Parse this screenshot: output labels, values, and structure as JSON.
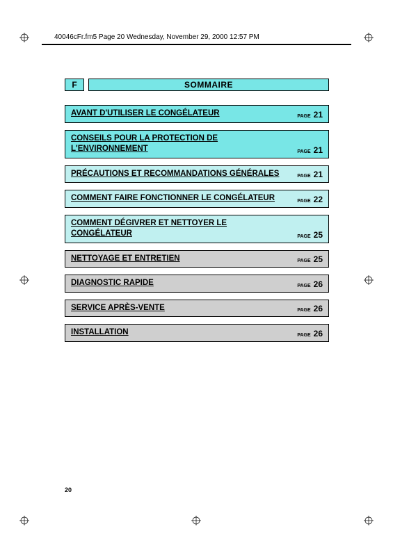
{
  "header_text": "40046cFr.fm5  Page 20  Wednesday, November 29, 2000  12:57 PM",
  "language_code": "F",
  "title": "SOMMAIRE",
  "page_label": "PAGE",
  "footer_page_number": "20",
  "colors": {
    "cyan_bright": "#78e6e6",
    "cyan_pale": "#c0f0f0",
    "grey": "#cfcfcf",
    "border": "#000000"
  },
  "toc": [
    {
      "title": "AVANT D'UTILISER LE CONGÉLATEUR",
      "page": "21",
      "bg": "#78e6e6"
    },
    {
      "title": "CONSEILS POUR LA PROTECTION DE L'ENVIRONNEMENT",
      "page": "21",
      "bg": "#78e6e6"
    },
    {
      "title": "PRÉCAUTIONS ET RECOMMANDATIONS GÉNÉRALES",
      "page": "21",
      "bg": "#c0f0f0"
    },
    {
      "title": "COMMENT FAIRE FONCTIONNER LE CONGÉLATEUR",
      "page": "22",
      "bg": "#c0f0f0"
    },
    {
      "title": "COMMENT DÉGIVRER ET NETTOYER LE CONGÉLATEUR",
      "page": "25",
      "bg": "#c0f0f0"
    },
    {
      "title": "NETTOYAGE ET ENTRETIEN",
      "page": "25",
      "bg": "#cfcfcf"
    },
    {
      "title": "DIAGNOSTIC RAPIDE",
      "page": "26",
      "bg": "#cfcfcf"
    },
    {
      "title": "SERVICE APRÈS-VENTE",
      "page": "26",
      "bg": "#cfcfcf"
    },
    {
      "title": "INSTALLATION",
      "page": "26",
      "bg": "#cfcfcf"
    }
  ]
}
